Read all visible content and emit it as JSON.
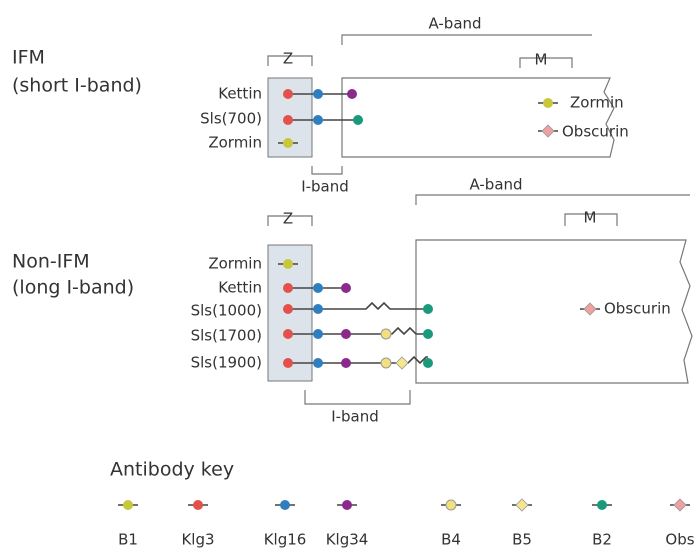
{
  "ifm": {
    "title": "IFM",
    "subtitle": "(short I-band)",
    "z_label": "Z",
    "a_band": "A-band",
    "m_label": "M",
    "i_band": "I-band",
    "rows": [
      "Kettin",
      "Sls(700)",
      "Zormin"
    ],
    "legend": [
      "Zormin",
      "Obscurin"
    ]
  },
  "non_ifm": {
    "title": "Non-IFM",
    "subtitle": "(long I-band)",
    "z_label": "Z",
    "a_band": "A-band",
    "m_label": "M",
    "i_band": "I-band",
    "rows": [
      "Zormin",
      "Kettin",
      "Sls(1000)",
      "Sls(1700)",
      "Sls(1900)"
    ],
    "legend": [
      "Obscurin"
    ]
  },
  "key": {
    "title": "Antibody key",
    "items": [
      {
        "label": "B1",
        "color": "#c9c83a",
        "shape": "circle"
      },
      {
        "label": "Klg3",
        "color": "#e2524a",
        "shape": "circle"
      },
      {
        "label": "Klg16",
        "color": "#2f7fc0",
        "shape": "circle"
      },
      {
        "label": "Klg34",
        "color": "#8b2a8d",
        "shape": "circle"
      },
      {
        "label": "B4",
        "color": "#f1e07c",
        "shape": "circle"
      },
      {
        "label": "B5",
        "color": "#f3e68c",
        "shape": "diamond"
      },
      {
        "label": "B2",
        "color": "#1a9a7c",
        "shape": "circle"
      },
      {
        "label": "Obs",
        "color": "#f0a0a0",
        "shape": "diamond"
      }
    ]
  }
}
